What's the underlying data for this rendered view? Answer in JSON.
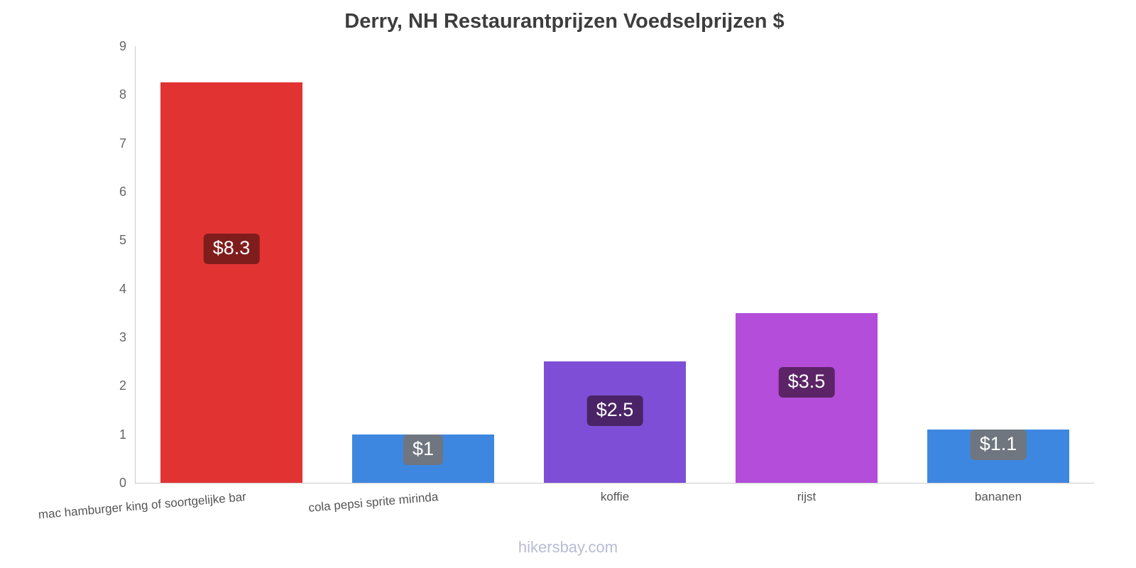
{
  "title": "Derry, NH Restaurantprijzen Voedselprijzen $",
  "footer": "hikersbay.com",
  "chart_data": {
    "type": "bar",
    "title": "Derry, NH Restaurantprijzen Voedselprijzen $",
    "categories": [
      "mac hamburger king of soortgelijke bar",
      "cola pepsi sprite mirinda",
      "koffie",
      "rijst",
      "bananen"
    ],
    "values": [
      8.25,
      1,
      2.5,
      3.5,
      1.1
    ],
    "value_labels": [
      "$8.3",
      "$1",
      "$2.5",
      "$3.5",
      "$1.1"
    ],
    "bar_colors": [
      "#e23333",
      "#3d87e0",
      "#7e4fd6",
      "#b44dd9",
      "#3d87e0"
    ],
    "label_badge_colors": [
      "#7f1d1d",
      "#6f7680",
      "#4a2466",
      "#5c2466",
      "#6f7680"
    ],
    "xlabel": "",
    "ylabel": "",
    "ylim": [
      0,
      9
    ],
    "yticks": [
      0,
      1,
      2,
      3,
      4,
      5,
      6,
      7,
      8,
      9
    ],
    "grid": false,
    "legend": false
  }
}
